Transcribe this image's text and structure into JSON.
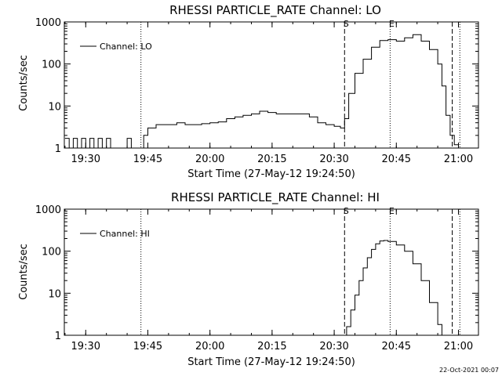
{
  "footer": {
    "date_stamp": "22-Oct-2021 00:07"
  },
  "chart_data": [
    {
      "type": "line",
      "title": "RHESSI PARTICLE_RATE Channel: LO",
      "xlabel": "Start Time (27-May-12 19:24:50)",
      "ylabel": "Counts/sec",
      "yscale": "log",
      "xlim": [
        "19:24:50",
        "21:04:50"
      ],
      "ylim": [
        1,
        1000
      ],
      "x_ticks": [
        "19:30",
        "19:45",
        "20:00",
        "20:15",
        "20:30",
        "20:45",
        "21:00"
      ],
      "y_ticks": [
        "1",
        "10",
        "100",
        "1000"
      ],
      "legend": {
        "position": "top-left",
        "entries": [
          "Channel: LO"
        ]
      },
      "markers": [
        {
          "label": "S",
          "time": "20:32:30",
          "style": "dashed"
        },
        {
          "label": "E",
          "time": "20:43:30",
          "style": "dotted"
        }
      ],
      "extra_lines": [
        {
          "time": "19:43:20",
          "style": "dotted"
        },
        {
          "time": "20:58:30",
          "style": "dashed"
        },
        {
          "time": "21:00:20",
          "style": "dotted"
        }
      ],
      "series": [
        {
          "x": [
            "19:25:00",
            "19:26:00",
            "19:27:00",
            "19:28:00",
            "19:29:00",
            "19:30:00",
            "19:31:00",
            "19:32:00",
            "19:33:00",
            "19:34:00",
            "19:35:00",
            "19:36:00",
            "19:37:00",
            "19:38:00",
            "19:40:00",
            "19:41:00",
            "19:42:00",
            "19:43:00",
            "19:44:00",
            "19:45:00",
            "19:47:00",
            "19:50:00",
            "19:52:00",
            "19:54:00",
            "19:56:00",
            "19:58:00",
            "20:00:00",
            "20:02:00",
            "20:04:00",
            "20:06:00",
            "20:08:00",
            "20:10:00",
            "20:12:00",
            "20:14:00",
            "20:16:00",
            "20:18:00",
            "20:20:00",
            "20:22:00",
            "20:24:00",
            "20:26:00",
            "20:28:00",
            "20:30:00",
            "20:31:30",
            "20:32:30",
            "20:33:30",
            "20:35:00",
            "20:37:00",
            "20:39:00",
            "20:41:00",
            "20:43:00",
            "20:45:00",
            "20:47:00",
            "20:49:00",
            "20:51:00",
            "20:53:00",
            "20:55:00",
            "20:56:00",
            "20:57:00",
            "20:58:00",
            "20:59:00",
            "21:00:00"
          ],
          "y": [
            1.7,
            1.0,
            1.7,
            1.0,
            1.7,
            1.0,
            1.7,
            1.0,
            1.7,
            1.0,
            1.7,
            1.0,
            1.0,
            1.0,
            1.7,
            1.0,
            1.0,
            1.0,
            2.0,
            3.0,
            3.6,
            3.6,
            4.0,
            3.6,
            3.6,
            3.8,
            4.0,
            4.2,
            5.0,
            5.5,
            6.0,
            6.5,
            7.5,
            7.0,
            6.5,
            6.5,
            6.5,
            6.5,
            5.5,
            4.0,
            3.6,
            3.3,
            3.0,
            5.0,
            20,
            60,
            130,
            250,
            360,
            380,
            350,
            420,
            500,
            350,
            220,
            100,
            30,
            6,
            2,
            1.2,
            1.0
          ]
        }
      ]
    },
    {
      "type": "line",
      "title": "RHESSI PARTICLE_RATE Channel: HI",
      "xlabel": "Start Time (27-May-12 19:24:50)",
      "ylabel": "Counts/sec",
      "yscale": "log",
      "xlim": [
        "19:24:50",
        "21:04:50"
      ],
      "ylim": [
        1,
        1000
      ],
      "x_ticks": [
        "19:30",
        "19:45",
        "20:00",
        "20:15",
        "20:30",
        "20:45",
        "21:00"
      ],
      "y_ticks": [
        "1",
        "10",
        "100",
        "1000"
      ],
      "legend": {
        "position": "top-left",
        "entries": [
          "Channel: HI"
        ]
      },
      "markers": [
        {
          "label": "S",
          "time": "20:32:30",
          "style": "dashed"
        },
        {
          "label": "E",
          "time": "20:43:30",
          "style": "dotted"
        }
      ],
      "extra_lines": [
        {
          "time": "19:43:20",
          "style": "dotted"
        },
        {
          "time": "20:58:30",
          "style": "dashed"
        },
        {
          "time": "21:00:20",
          "style": "dotted"
        }
      ],
      "series": [
        {
          "x": [
            "20:32:40",
            "20:33:00",
            "20:34:00",
            "20:35:00",
            "20:36:00",
            "20:37:00",
            "20:38:00",
            "20:39:00",
            "20:40:00",
            "20:41:00",
            "20:42:00",
            "20:43:00",
            "20:45:00",
            "20:47:00",
            "20:49:00",
            "20:51:00",
            "20:53:00",
            "20:55:00",
            "20:56:00"
          ],
          "y": [
            1.0,
            1.6,
            4,
            9,
            20,
            40,
            70,
            110,
            150,
            175,
            180,
            170,
            140,
            100,
            50,
            20,
            6,
            1.8,
            1.0
          ]
        }
      ]
    }
  ]
}
